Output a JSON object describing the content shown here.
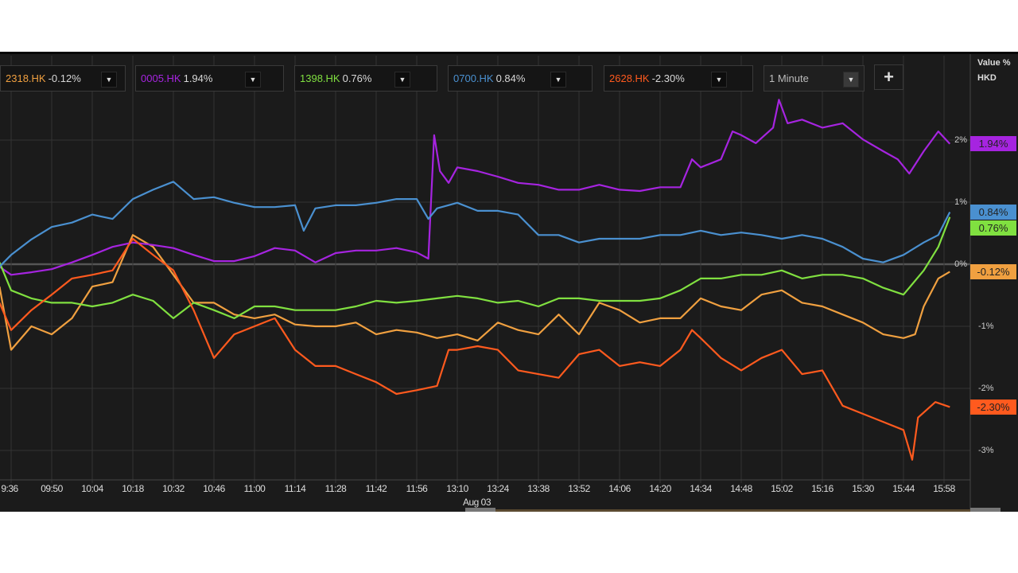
{
  "toolbar": {
    "symbols": [
      {
        "ticker": "2318.HK",
        "change": "-0.12%",
        "color": "#f0a040"
      },
      {
        "ticker": "0005.HK",
        "change": "1.94%",
        "color": "#a624e0"
      },
      {
        "ticker": "1398.HK",
        "change": "0.76%",
        "color": "#80e040"
      },
      {
        "ticker": "0700.HK",
        "change": "0.84%",
        "color": "#4a90d0"
      },
      {
        "ticker": "2628.HK",
        "change": "-2.30%",
        "color": "#ff5a1e"
      }
    ],
    "dropdown_icon": "triangle-down-icon",
    "interval": "1 Minute",
    "add_label": "+"
  },
  "axis_header": {
    "unit": "Value %",
    "currency": "HKD"
  },
  "chart_data": {
    "type": "line",
    "xlabel": "",
    "ylabel": "",
    "x_tick_labels": [
      "9:36",
      "09:50",
      "10:04",
      "10:18",
      "10:32",
      "10:46",
      "11:00",
      "11:14",
      "11:28",
      "11:42",
      "11:56",
      "13:10",
      "13:24",
      "13:38",
      "13:52",
      "14:06",
      "14:20",
      "14:34",
      "14:48",
      "15:02",
      "15:16",
      "15:30",
      "15:44",
      "15:58"
    ],
    "x_date_label": "Aug 03",
    "y_ticks": [
      2,
      1,
      0,
      -1,
      -2,
      -3
    ],
    "y_tick_labels": [
      "2%",
      "1%",
      "0%",
      "-1%",
      "-2%",
      "-3%"
    ],
    "ylim": [
      -3.4,
      2.75
    ],
    "grid": true,
    "zero_line": true,
    "last_value_badges": true,
    "series": [
      {
        "name": "2318.HK",
        "last_label": "-0.12%",
        "color": "#f0a040",
        "points": [
          [
            "09:32",
            -0.36
          ],
          [
            "09:36",
            -1.38
          ],
          [
            "09:43",
            -1.0
          ],
          [
            "09:50",
            -1.13
          ],
          [
            "09:57",
            -0.87
          ],
          [
            "10:04",
            -0.36
          ],
          [
            "10:11",
            -0.29
          ],
          [
            "10:18",
            0.47
          ],
          [
            "10:25",
            0.28
          ],
          [
            "10:32",
            -0.17
          ],
          [
            "10:39",
            -0.62
          ],
          [
            "10:46",
            -0.62
          ],
          [
            "10:53",
            -0.81
          ],
          [
            "11:00",
            -0.87
          ],
          [
            "11:07",
            -0.81
          ],
          [
            "11:14",
            -0.97
          ],
          [
            "11:21",
            -1.0
          ],
          [
            "11:28",
            -1.0
          ],
          [
            "11:35",
            -0.94
          ],
          [
            "11:42",
            -1.13
          ],
          [
            "11:49",
            -1.06
          ],
          [
            "11:56",
            -1.1
          ],
          [
            "13:03",
            -1.19
          ],
          [
            "13:10",
            -1.13
          ],
          [
            "13:17",
            -1.23
          ],
          [
            "13:24",
            -0.94
          ],
          [
            "13:31",
            -1.06
          ],
          [
            "13:38",
            -1.13
          ],
          [
            "13:45",
            -0.81
          ],
          [
            "13:52",
            -1.13
          ],
          [
            "13:59",
            -0.62
          ],
          [
            "14:06",
            -0.74
          ],
          [
            "14:13",
            -0.94
          ],
          [
            "14:20",
            -0.87
          ],
          [
            "14:27",
            -0.87
          ],
          [
            "14:34",
            -0.55
          ],
          [
            "14:41",
            -0.68
          ],
          [
            "14:48",
            -0.74
          ],
          [
            "14:55",
            -0.49
          ],
          [
            "15:02",
            -0.42
          ],
          [
            "15:09",
            -0.62
          ],
          [
            "15:16",
            -0.68
          ],
          [
            "15:23",
            -0.81
          ],
          [
            "15:30",
            -0.94
          ],
          [
            "15:37",
            -1.13
          ],
          [
            "15:44",
            -1.19
          ],
          [
            "15:48",
            -1.13
          ],
          [
            "15:51",
            -0.68
          ],
          [
            "15:56",
            -0.23
          ],
          [
            "16:00",
            -0.12
          ]
        ]
      },
      {
        "name": "0005.HK",
        "last_label": "1.94%",
        "color": "#a624e0",
        "points": [
          [
            "09:32",
            -0.04
          ],
          [
            "09:36",
            -0.17
          ],
          [
            "09:43",
            -0.13
          ],
          [
            "09:50",
            -0.08
          ],
          [
            "09:57",
            0.03
          ],
          [
            "10:04",
            0.15
          ],
          [
            "10:11",
            0.28
          ],
          [
            "10:18",
            0.35
          ],
          [
            "10:25",
            0.31
          ],
          [
            "10:32",
            0.26
          ],
          [
            "10:39",
            0.15
          ],
          [
            "10:46",
            0.05
          ],
          [
            "10:53",
            0.05
          ],
          [
            "11:00",
            0.13
          ],
          [
            "11:07",
            0.26
          ],
          [
            "11:14",
            0.22
          ],
          [
            "11:21",
            0.03
          ],
          [
            "11:28",
            0.18
          ],
          [
            "11:35",
            0.22
          ],
          [
            "11:42",
            0.22
          ],
          [
            "11:49",
            0.26
          ],
          [
            "11:56",
            0.19
          ],
          [
            "12:00",
            0.09
          ],
          [
            "13:02",
            2.08
          ],
          [
            "13:04",
            1.5
          ],
          [
            "13:07",
            1.31
          ],
          [
            "13:10",
            1.56
          ],
          [
            "13:17",
            1.5
          ],
          [
            "13:24",
            1.41
          ],
          [
            "13:31",
            1.31
          ],
          [
            "13:38",
            1.28
          ],
          [
            "13:45",
            1.2
          ],
          [
            "13:52",
            1.2
          ],
          [
            "13:59",
            1.28
          ],
          [
            "14:06",
            1.2
          ],
          [
            "14:13",
            1.18
          ],
          [
            "14:20",
            1.24
          ],
          [
            "14:27",
            1.24
          ],
          [
            "14:31",
            1.69
          ],
          [
            "14:34",
            1.56
          ],
          [
            "14:41",
            1.69
          ],
          [
            "14:45",
            2.14
          ],
          [
            "14:48",
            2.08
          ],
          [
            "14:53",
            1.95
          ],
          [
            "14:59",
            2.2
          ],
          [
            "15:01",
            2.65
          ],
          [
            "15:04",
            2.27
          ],
          [
            "15:09",
            2.33
          ],
          [
            "15:16",
            2.2
          ],
          [
            "15:23",
            2.27
          ],
          [
            "15:30",
            2.01
          ],
          [
            "15:37",
            1.82
          ],
          [
            "15:42",
            1.69
          ],
          [
            "15:46",
            1.46
          ],
          [
            "15:51",
            1.82
          ],
          [
            "15:56",
            2.14
          ],
          [
            "16:00",
            1.94
          ]
        ]
      },
      {
        "name": "1398.HK",
        "last_label": "0.76%",
        "color": "#80e040",
        "points": [
          [
            "09:32",
            0.03
          ],
          [
            "09:36",
            -0.42
          ],
          [
            "09:43",
            -0.55
          ],
          [
            "09:50",
            -0.62
          ],
          [
            "09:57",
            -0.62
          ],
          [
            "10:04",
            -0.68
          ],
          [
            "10:11",
            -0.62
          ],
          [
            "10:18",
            -0.49
          ],
          [
            "10:25",
            -0.59
          ],
          [
            "10:32",
            -0.87
          ],
          [
            "10:39",
            -0.62
          ],
          [
            "10:46",
            -0.74
          ],
          [
            "10:53",
            -0.87
          ],
          [
            "11:00",
            -0.68
          ],
          [
            "11:07",
            -0.68
          ],
          [
            "11:14",
            -0.74
          ],
          [
            "11:21",
            -0.74
          ],
          [
            "11:28",
            -0.74
          ],
          [
            "11:35",
            -0.68
          ],
          [
            "11:42",
            -0.59
          ],
          [
            "11:49",
            -0.62
          ],
          [
            "11:56",
            -0.59
          ],
          [
            "13:03",
            -0.55
          ],
          [
            "13:10",
            -0.51
          ],
          [
            "13:17",
            -0.55
          ],
          [
            "13:24",
            -0.62
          ],
          [
            "13:31",
            -0.59
          ],
          [
            "13:38",
            -0.68
          ],
          [
            "13:45",
            -0.55
          ],
          [
            "13:52",
            -0.55
          ],
          [
            "13:59",
            -0.59
          ],
          [
            "14:06",
            -0.59
          ],
          [
            "14:13",
            -0.59
          ],
          [
            "14:20",
            -0.55
          ],
          [
            "14:27",
            -0.42
          ],
          [
            "14:34",
            -0.23
          ],
          [
            "14:41",
            -0.23
          ],
          [
            "14:48",
            -0.17
          ],
          [
            "14:55",
            -0.17
          ],
          [
            "15:02",
            -0.1
          ],
          [
            "15:09",
            -0.23
          ],
          [
            "15:16",
            -0.17
          ],
          [
            "15:23",
            -0.17
          ],
          [
            "15:30",
            -0.23
          ],
          [
            "15:37",
            -0.38
          ],
          [
            "15:44",
            -0.49
          ],
          [
            "15:51",
            -0.1
          ],
          [
            "15:56",
            0.28
          ],
          [
            "16:00",
            0.76
          ]
        ]
      },
      {
        "name": "0700.HK",
        "last_label": "0.84%",
        "color": "#4a90d0",
        "points": [
          [
            "09:32",
            -0.04
          ],
          [
            "09:36",
            0.15
          ],
          [
            "09:43",
            0.4
          ],
          [
            "09:50",
            0.6
          ],
          [
            "09:57",
            0.67
          ],
          [
            "10:04",
            0.8
          ],
          [
            "10:11",
            0.73
          ],
          [
            "10:18",
            1.05
          ],
          [
            "10:25",
            1.2
          ],
          [
            "10:32",
            1.33
          ],
          [
            "10:39",
            1.05
          ],
          [
            "10:46",
            1.08
          ],
          [
            "10:53",
            0.99
          ],
          [
            "11:00",
            0.92
          ],
          [
            "11:07",
            0.92
          ],
          [
            "11:14",
            0.95
          ],
          [
            "11:17",
            0.54
          ],
          [
            "11:21",
            0.9
          ],
          [
            "11:28",
            0.95
          ],
          [
            "11:35",
            0.95
          ],
          [
            "11:42",
            0.99
          ],
          [
            "11:49",
            1.05
          ],
          [
            "11:56",
            1.05
          ],
          [
            "12:00",
            0.73
          ],
          [
            "13:03",
            0.9
          ],
          [
            "13:10",
            0.99
          ],
          [
            "13:17",
            0.86
          ],
          [
            "13:24",
            0.86
          ],
          [
            "13:31",
            0.8
          ],
          [
            "13:38",
            0.47
          ],
          [
            "13:45",
            0.47
          ],
          [
            "13:52",
            0.35
          ],
          [
            "13:59",
            0.41
          ],
          [
            "14:06",
            0.41
          ],
          [
            "14:13",
            0.41
          ],
          [
            "14:20",
            0.47
          ],
          [
            "14:27",
            0.47
          ],
          [
            "14:34",
            0.54
          ],
          [
            "14:41",
            0.47
          ],
          [
            "14:48",
            0.51
          ],
          [
            "14:55",
            0.47
          ],
          [
            "15:02",
            0.41
          ],
          [
            "15:09",
            0.47
          ],
          [
            "15:16",
            0.41
          ],
          [
            "15:23",
            0.28
          ],
          [
            "15:30",
            0.09
          ],
          [
            "15:37",
            0.03
          ],
          [
            "15:44",
            0.15
          ],
          [
            "15:51",
            0.35
          ],
          [
            "15:56",
            0.47
          ],
          [
            "16:00",
            0.84
          ]
        ]
      },
      {
        "name": "2628.HK",
        "last_label": "-2.30%",
        "color": "#ff5a1e",
        "points": [
          [
            "09:32",
            -0.62
          ],
          [
            "09:36",
            -1.06
          ],
          [
            "09:43",
            -0.74
          ],
          [
            "09:50",
            -0.49
          ],
          [
            "09:57",
            -0.23
          ],
          [
            "10:04",
            -0.17
          ],
          [
            "10:11",
            -0.1
          ],
          [
            "10:18",
            0.41
          ],
          [
            "10:25",
            0.15
          ],
          [
            "10:32",
            -0.1
          ],
          [
            "10:39",
            -0.74
          ],
          [
            "10:46",
            -1.51
          ],
          [
            "10:53",
            -1.13
          ],
          [
            "11:00",
            -1.0
          ],
          [
            "11:07",
            -0.87
          ],
          [
            "11:14",
            -1.38
          ],
          [
            "11:21",
            -1.64
          ],
          [
            "11:28",
            -1.64
          ],
          [
            "11:35",
            -1.77
          ],
          [
            "11:42",
            -1.9
          ],
          [
            "11:49",
            -2.09
          ],
          [
            "11:56",
            -2.03
          ],
          [
            "13:03",
            -1.96
          ],
          [
            "13:07",
            -1.38
          ],
          [
            "13:10",
            -1.38
          ],
          [
            "13:17",
            -1.32
          ],
          [
            "13:24",
            -1.38
          ],
          [
            "13:31",
            -1.71
          ],
          [
            "13:38",
            -1.77
          ],
          [
            "13:45",
            -1.83
          ],
          [
            "13:52",
            -1.45
          ],
          [
            "13:59",
            -1.38
          ],
          [
            "14:06",
            -1.64
          ],
          [
            "14:13",
            -1.58
          ],
          [
            "14:20",
            -1.64
          ],
          [
            "14:27",
            -1.38
          ],
          [
            "14:31",
            -1.06
          ],
          [
            "14:34",
            -1.19
          ],
          [
            "14:41",
            -1.51
          ],
          [
            "14:48",
            -1.71
          ],
          [
            "14:55",
            -1.51
          ],
          [
            "15:02",
            -1.38
          ],
          [
            "15:09",
            -1.77
          ],
          [
            "15:16",
            -1.71
          ],
          [
            "15:23",
            -2.28
          ],
          [
            "15:30",
            -2.41
          ],
          [
            "15:37",
            -2.54
          ],
          [
            "15:44",
            -2.67
          ],
          [
            "15:47",
            -3.15
          ],
          [
            "15:49",
            -2.47
          ],
          [
            "15:55",
            -2.22
          ],
          [
            "16:00",
            -2.3
          ]
        ]
      }
    ]
  }
}
